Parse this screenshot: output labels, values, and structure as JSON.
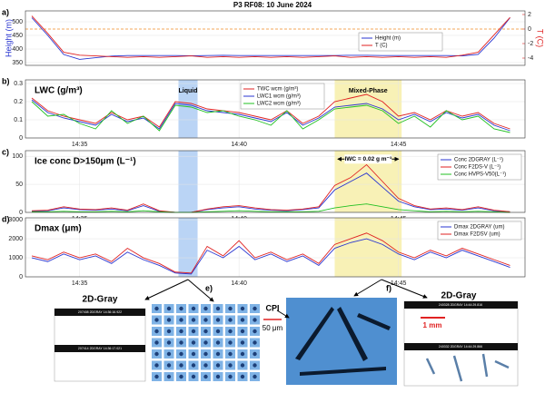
{
  "chart_data": [
    {
      "type": "line",
      "title": "P3 RF08: 10 June 2024",
      "panel_label": "a)",
      "ylabel": "Height (m)",
      "y2label": "T (C)",
      "legend": "center-right",
      "grid": true,
      "xlim": [
        33.3,
        48.97
      ],
      "x": [
        33.5,
        34,
        34.5,
        35,
        35.5,
        36,
        36.5,
        37,
        37.5,
        38,
        38.5,
        39,
        39.5,
        40,
        40.5,
        41,
        41.5,
        42,
        42.5,
        43,
        43.5,
        44,
        44.5,
        45,
        45.5,
        46,
        46.5,
        47,
        47.5,
        48,
        48.5
      ],
      "ylim": [
        340,
        540
      ],
      "yticks": [
        350,
        400,
        450,
        500
      ],
      "y2lim": [
        -5,
        2.5
      ],
      "y2ticks": [
        -4,
        -2,
        0,
        2
      ],
      "reference_line": {
        "value": 0,
        "axis": "y2",
        "color": "#f08a24"
      },
      "series": [
        {
          "name": "Height (m)",
          "color": "#2a36d0",
          "values": [
            515,
            450,
            380,
            362,
            368,
            374,
            376,
            376,
            376,
            376,
            375,
            376,
            377,
            376,
            376,
            376,
            376,
            376,
            376,
            376,
            377,
            377,
            376,
            376,
            376,
            376,
            376,
            375,
            380,
            440,
            515
          ]
        },
        {
          "name": "T (C)",
          "color": "#e02222",
          "axis": "y2",
          "values": [
            1.8,
            -0.6,
            -3.2,
            -3.6,
            -3.7,
            -3.8,
            -3.9,
            -3.8,
            -3.9,
            -3.8,
            -3.7,
            -3.9,
            -3.8,
            -3.9,
            -3.8,
            -3.9,
            -3.8,
            -3.9,
            -3.8,
            -3.7,
            -3.9,
            -3.8,
            -3.9,
            -3.8,
            -3.9,
            -3.8,
            -3.9,
            -3.6,
            -3.2,
            -0.8,
            1.6
          ]
        }
      ]
    },
    {
      "type": "line",
      "panel_label": "b)",
      "ylabel": "LWC (g/m³)",
      "legend": "upper-center",
      "grid": true,
      "xlim": [
        33.3,
        48.97
      ],
      "x": [
        33.5,
        34,
        34.5,
        35,
        35.5,
        36,
        36.5,
        37,
        37.5,
        38,
        38.5,
        39,
        39.5,
        40,
        40.5,
        41,
        41.5,
        42,
        42.5,
        43,
        43.5,
        44,
        44.5,
        45,
        45.5,
        46,
        46.5,
        47,
        47.5,
        48,
        48.5
      ],
      "xticks": [
        {
          "value": 35,
          "label": "14:35"
        },
        {
          "value": 40,
          "label": "14:40"
        },
        {
          "value": 45,
          "label": "14:45"
        }
      ],
      "ylim": [
        0,
        0.32
      ],
      "yticks": [
        0,
        0.1,
        0.2,
        0.3
      ],
      "regions": [
        {
          "label": "Liquid",
          "x": [
            38.1,
            38.7
          ],
          "color": "#a9c9f3"
        },
        {
          "label": "Mixed-Phase",
          "x": [
            43,
            45.1
          ],
          "color": "#f6eea4"
        }
      ],
      "series": [
        {
          "name": "TWC wcm (g/m³)",
          "color": "#e02222",
          "values": [
            0.22,
            0.15,
            0.12,
            0.1,
            0.08,
            0.14,
            0.1,
            0.12,
            0.06,
            0.2,
            0.19,
            0.16,
            0.15,
            0.14,
            0.12,
            0.1,
            0.15,
            0.08,
            0.12,
            0.2,
            0.22,
            0.24,
            0.2,
            0.12,
            0.14,
            0.1,
            0.15,
            0.12,
            0.14,
            0.08,
            0.05
          ]
        },
        {
          "name": "LWC1 wcm (g/m³)",
          "color": "#2a36d0",
          "values": [
            0.21,
            0.14,
            0.11,
            0.09,
            0.07,
            0.13,
            0.09,
            0.11,
            0.05,
            0.19,
            0.18,
            0.15,
            0.14,
            0.13,
            0.11,
            0.09,
            0.14,
            0.07,
            0.11,
            0.17,
            0.18,
            0.19,
            0.16,
            0.1,
            0.13,
            0.09,
            0.14,
            0.11,
            0.13,
            0.07,
            0.04
          ]
        },
        {
          "name": "LWC2 wcm (g/m³)",
          "color": "#22c022",
          "values": [
            0.2,
            0.12,
            0.13,
            0.08,
            0.05,
            0.15,
            0.08,
            0.12,
            0.04,
            0.18,
            0.17,
            0.14,
            0.15,
            0.12,
            0.1,
            0.07,
            0.15,
            0.05,
            0.1,
            0.16,
            0.17,
            0.18,
            0.15,
            0.08,
            0.12,
            0.06,
            0.15,
            0.1,
            0.12,
            0.05,
            0.03
          ]
        }
      ]
    },
    {
      "type": "line",
      "panel_label": "c)",
      "ylabel": "Ice conc D>150μm (L⁻¹)",
      "legend": "upper-right",
      "grid": true,
      "xlim": [
        33.3,
        48.97
      ],
      "x": [
        33.5,
        34,
        34.5,
        35,
        35.5,
        36,
        36.5,
        37,
        37.5,
        38,
        38.5,
        39,
        39.5,
        40,
        40.5,
        41,
        41.5,
        42,
        42.5,
        43,
        43.5,
        44,
        44.5,
        45,
        45.5,
        46,
        46.5,
        47,
        47.5,
        48,
        48.5
      ],
      "xticks": [
        {
          "value": 35,
          "label": "14:35"
        },
        {
          "value": 40,
          "label": "14:40"
        },
        {
          "value": 45,
          "label": "14:45"
        }
      ],
      "ylim": [
        0,
        110
      ],
      "yticks": [
        0,
        50,
        100
      ],
      "regions": [
        {
          "x": [
            38.1,
            38.7
          ],
          "color": "#a9c9f3"
        },
        {
          "x": [
            43,
            45.1
          ],
          "color": "#f6eea4"
        }
      ],
      "annotation": {
        "text": "IWC = 0.02 g m⁻³",
        "x": [
          43.1,
          45
        ],
        "y": 95
      },
      "series": [
        {
          "name": "Conc 2DGRAY (L⁻¹)",
          "color": "#2a36d0",
          "values": [
            2,
            3,
            8,
            5,
            4,
            6,
            3,
            12,
            2,
            0,
            0,
            5,
            8,
            10,
            6,
            4,
            3,
            5,
            8,
            40,
            55,
            70,
            45,
            20,
            10,
            5,
            6,
            4,
            8,
            3,
            1
          ]
        },
        {
          "name": "Conc F2DS-V (L⁻¹)",
          "color": "#e02222",
          "values": [
            3,
            4,
            10,
            6,
            5,
            8,
            4,
            15,
            3,
            0,
            0,
            6,
            10,
            12,
            8,
            5,
            4,
            6,
            10,
            48,
            62,
            85,
            55,
            25,
            12,
            6,
            8,
            5,
            10,
            4,
            1
          ]
        },
        {
          "name": "Conc HVPS-V50(L⁻¹)",
          "color": "#22c022",
          "values": [
            1,
            1,
            2,
            1,
            1,
            2,
            1,
            3,
            1,
            0,
            0,
            1,
            2,
            3,
            2,
            1,
            1,
            1,
            2,
            8,
            12,
            15,
            10,
            5,
            3,
            1,
            2,
            1,
            2,
            1,
            0
          ]
        }
      ]
    },
    {
      "type": "line",
      "panel_label": "d)",
      "ylabel": "Dmax (μm)",
      "legend": "upper-right",
      "grid": true,
      "xlim": [
        33.3,
        48.97
      ],
      "x": [
        33.5,
        34,
        34.5,
        35,
        35.5,
        36,
        36.5,
        37,
        37.5,
        38,
        38.5,
        39,
        39.5,
        40,
        40.5,
        41,
        41.5,
        42,
        42.5,
        43,
        43.5,
        44,
        44.5,
        45,
        45.5,
        46,
        46.5,
        47,
        47.5,
        48,
        48.5
      ],
      "xticks": [
        {
          "value": 35,
          "label": "14:35"
        },
        {
          "value": 40,
          "label": "14:40"
        },
        {
          "value": 45,
          "label": "14:45"
        }
      ],
      "ylim": [
        0,
        3100
      ],
      "yticks": [
        0,
        1000,
        2000,
        3000
      ],
      "regions": [
        {
          "x": [
            38.1,
            38.7
          ],
          "color": "#a9c9f3"
        },
        {
          "x": [
            43,
            45.1
          ],
          "color": "#f6eea4"
        }
      ],
      "series": [
        {
          "name": "Dmax 2DGRAY (um)",
          "color": "#2a36d0",
          "values": [
            1000,
            800,
            1200,
            900,
            1100,
            700,
            1300,
            900,
            600,
            200,
            150,
            1400,
            1000,
            1600,
            900,
            1200,
            800,
            1100,
            600,
            1500,
            1800,
            2000,
            1700,
            1200,
            900,
            1300,
            1000,
            1400,
            1100,
            800,
            500
          ]
        },
        {
          "name": "Dmax F2DSV (um)",
          "color": "#e02222",
          "values": [
            1100,
            900,
            1300,
            1000,
            1200,
            800,
            1500,
            1000,
            700,
            250,
            200,
            1600,
            1100,
            1900,
            1000,
            1300,
            900,
            1200,
            700,
            1700,
            2000,
            2300,
            1900,
            1300,
            1000,
            1400,
            1100,
            1500,
            1200,
            900,
            600
          ]
        }
      ]
    }
  ],
  "images": {
    "left_title": "2D-Gray",
    "e_label": "e)",
    "cpi": "CPI",
    "cpi_scale": "50 μm",
    "f_label": "f)",
    "right_title": "2D-Gray",
    "right_scale": "1 mm",
    "stamps_left": [
      "207408 2DGRAY 14:36:16.922",
      "207414 2DGRAY 14:36:17.021"
    ],
    "stamps_right": [
      "240328 2DGRAY 14:44:29.816",
      "240332 2DGRAY 14:44:29.866"
    ]
  }
}
